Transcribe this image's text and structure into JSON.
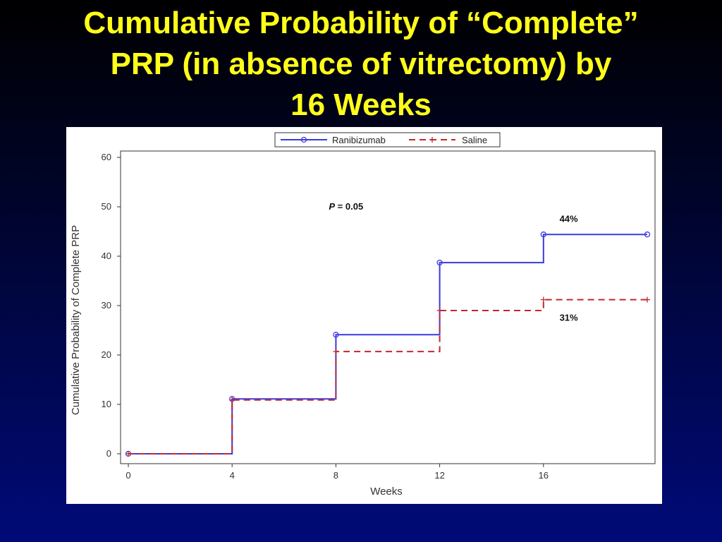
{
  "title": {
    "lines": [
      "Cumulative Probability of “Complete”",
      "PRP (in absence of vitrectomy) by",
      "16 Weeks"
    ]
  },
  "colors": {
    "title": "#ffff1a",
    "ranibizumab": "#3a3ae0",
    "saline": "#c0282e"
  },
  "chart_data": {
    "type": "line",
    "title": "",
    "xlabel": "Weeks",
    "ylabel": "Cumulative Probability of Complete PRP",
    "xlim": [
      0,
      20
    ],
    "ylim": [
      0,
      60
    ],
    "xticks": [
      0,
      4,
      8,
      12,
      16
    ],
    "yticks": [
      0,
      10,
      20,
      30,
      40,
      50,
      60
    ],
    "step": true,
    "grid": false,
    "legend_position": "top-center",
    "series": [
      {
        "name": "Ranibizumab",
        "marker": "circle",
        "line_style": "solid",
        "x": [
          0,
          4,
          8,
          12,
          16,
          20
        ],
        "y": [
          0,
          11.1,
          24.1,
          38.7,
          44.4,
          44.4
        ]
      },
      {
        "name": "Saline",
        "marker": "plus",
        "line_style": "dashed",
        "x": [
          0,
          4,
          8,
          12,
          16,
          20
        ],
        "y": [
          0,
          10.9,
          20.7,
          29.0,
          31.2,
          31.2
        ]
      }
    ],
    "annotations": [
      {
        "text_prefix": "P",
        "text_value": " = 0.05",
        "x": 8,
        "y": 50
      },
      {
        "text": "44%",
        "x": 17,
        "y": 47.5
      },
      {
        "text": "31%",
        "x": 17,
        "y": 27.5
      }
    ]
  }
}
